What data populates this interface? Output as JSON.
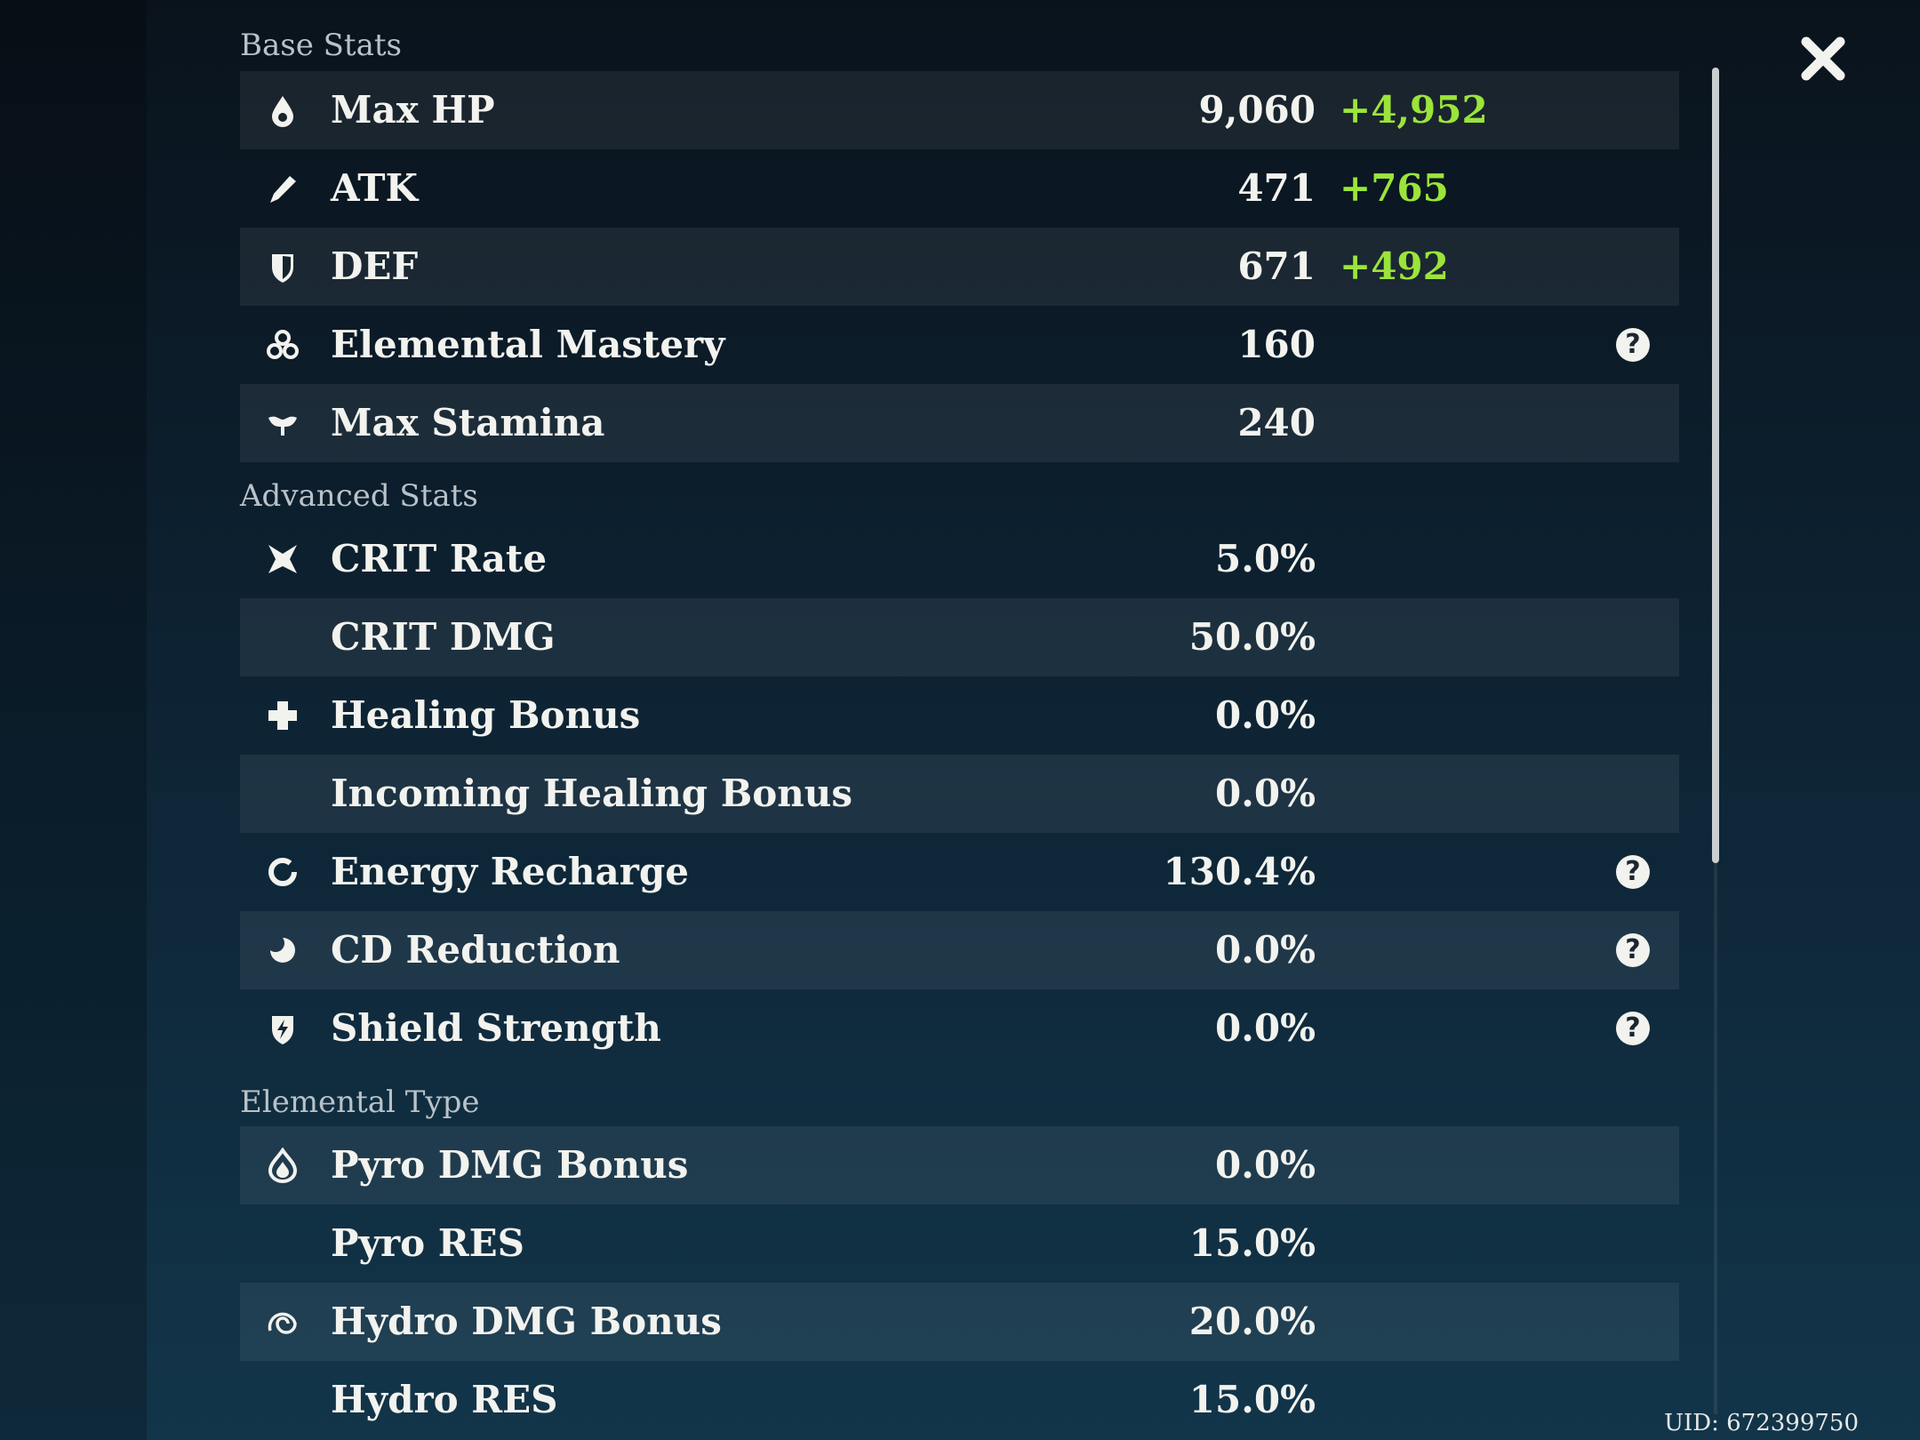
{
  "sections": [
    {
      "title": "Base Stats",
      "rows": [
        {
          "label": "Max HP",
          "value": "9,060",
          "bonus": "+4,952"
        },
        {
          "label": "ATK",
          "value": "471",
          "bonus": "+765"
        },
        {
          "label": "DEF",
          "value": "671",
          "bonus": "+492"
        },
        {
          "label": "Elemental Mastery",
          "value": "160",
          "help": "?"
        },
        {
          "label": "Max Stamina",
          "value": "240"
        }
      ]
    },
    {
      "title": "Advanced Stats",
      "rows": [
        {
          "label": "CRIT Rate",
          "value": "5.0%"
        },
        {
          "label": "CRIT DMG",
          "value": "50.0%"
        },
        {
          "label": "Healing Bonus",
          "value": "0.0%"
        },
        {
          "label": "Incoming Healing Bonus",
          "value": "0.0%"
        },
        {
          "label": "Energy Recharge",
          "value": "130.4%",
          "help": "?"
        },
        {
          "label": "CD Reduction",
          "value": "0.0%",
          "help": "?"
        },
        {
          "label": "Shield Strength",
          "value": "0.0%",
          "help": "?"
        }
      ]
    },
    {
      "title": "Elemental Type",
      "rows": [
        {
          "label": "Pyro DMG Bonus",
          "value": "0.0%"
        },
        {
          "label": "Pyro RES",
          "value": "15.0%"
        },
        {
          "label": "Hydro DMG Bonus",
          "value": "20.0%"
        },
        {
          "label": "Hydro RES",
          "value": "15.0%"
        }
      ]
    }
  ],
  "uid": "UID: 672399750"
}
